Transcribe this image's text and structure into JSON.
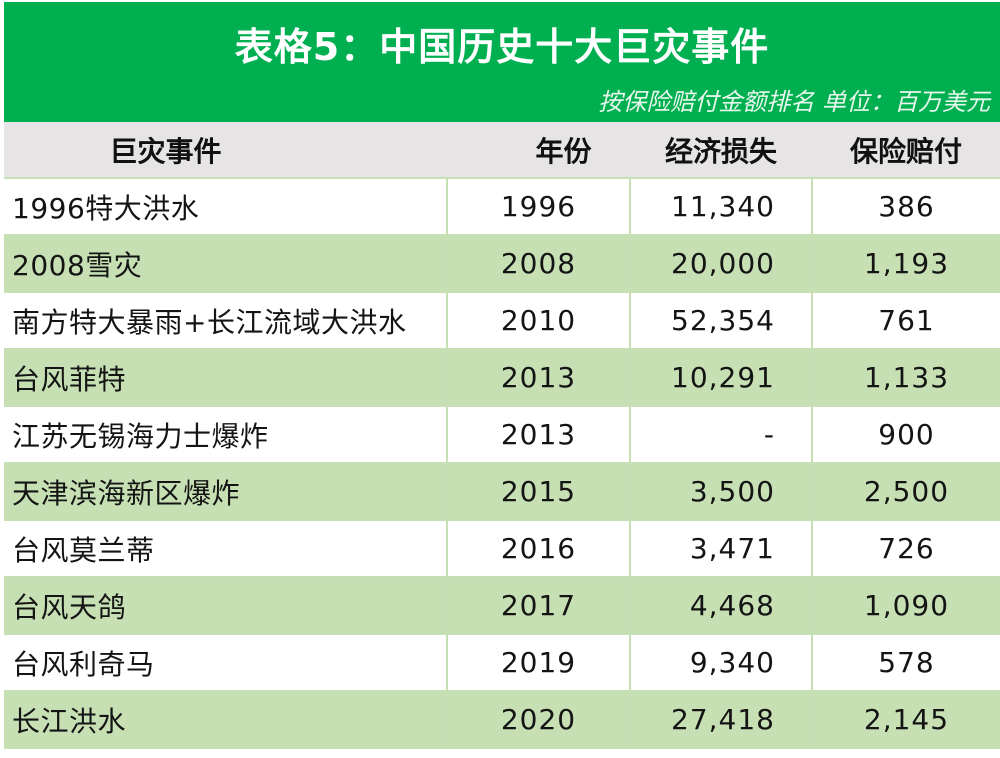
{
  "header": {
    "title": "表格5：中国历史十大巨灾事件",
    "subtitle": "按保险赔付金额排名 单位：百万美元"
  },
  "colors": {
    "banner": "#00b050",
    "header_row": "#e6e4e4",
    "alt_row": "#c6e0b4",
    "grid": "#c7dfb4"
  },
  "table": {
    "columns": [
      "巨灾事件",
      "年份",
      "经济损失",
      "保险赔付"
    ],
    "rows": [
      {
        "event": "1996特大洪水",
        "year": "1996",
        "loss": "11,340",
        "payout": "386"
      },
      {
        "event": "2008雪灾",
        "year": "2008",
        "loss": "20,000",
        "payout": "1,193"
      },
      {
        "event": "南方特大暴雨+长江流域大洪水",
        "year": "2010",
        "loss": "52,354",
        "payout": "761"
      },
      {
        "event": "台风菲特",
        "year": "2013",
        "loss": "10,291",
        "payout": "1,133"
      },
      {
        "event": "江苏无锡海力士爆炸",
        "year": "2013",
        "loss": "-",
        "payout": "900"
      },
      {
        "event": "天津滨海新区爆炸",
        "year": "2015",
        "loss": "3,500",
        "payout": "2,500"
      },
      {
        "event": "台风莫兰蒂",
        "year": "2016",
        "loss": "3,471",
        "payout": "726"
      },
      {
        "event": "台风天鸽",
        "year": "2017",
        "loss": "4,468",
        "payout": "1,090"
      },
      {
        "event": "台风利奇马",
        "year": "2019",
        "loss": "9,340",
        "payout": "578"
      },
      {
        "event": "长江洪水",
        "year": "2020",
        "loss": "27,418",
        "payout": "2,145"
      }
    ]
  }
}
